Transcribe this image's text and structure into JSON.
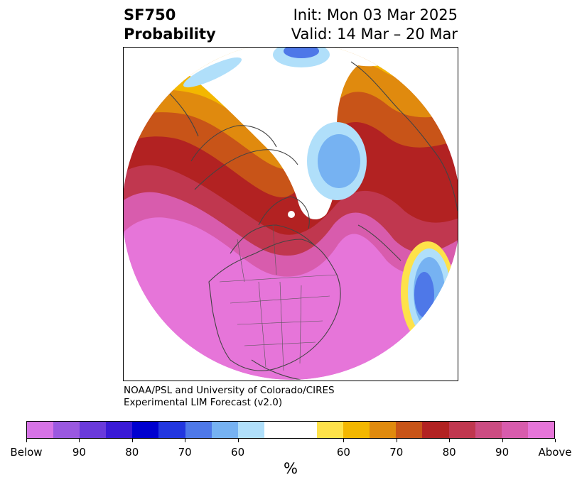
{
  "title": {
    "variable": "SF750",
    "subtitle": "Probability",
    "init": "Init: Mon 03 Mar 2025",
    "valid": "Valid: 14 Mar – 20 Mar"
  },
  "credit": {
    "line1": "NOAA/PSL and University of Colorado/CIRES",
    "line2": "Experimental LIM Forecast (v2.0)"
  },
  "map": {
    "projection": "north-polar-stereographic",
    "region": "North America / Arctic / North Atlantic",
    "features": [
      "coastlines",
      "country borders",
      "state and province borders"
    ],
    "highlights": [
      {
        "where": "Arctic Ocean",
        "category": "below"
      },
      {
        "where": "Central North Atlantic",
        "category": "below"
      },
      {
        "where": "Contiguous United States",
        "category": "above"
      },
      {
        "where": "Northeast Pacific",
        "category": "above"
      }
    ]
  },
  "colorbar": {
    "unit": "%",
    "colors_below": [
      "#d673e6",
      "#9a58e0",
      "#6a3adb",
      "#3a1ad6",
      "#0000cf",
      "#2236df",
      "#4e78e8",
      "#76b2f2",
      "#b0dffa"
    ],
    "color_neutral": "#ffffff",
    "colors_above": [
      "#fee24a",
      "#f3b700",
      "#e08a0e",
      "#c85418",
      "#b22222",
      "#c0374f",
      "#cc4c82",
      "#d85cad",
      "#e675d9"
    ],
    "labels": [
      "Below",
      "90",
      "80",
      "70",
      "60",
      "60",
      "70",
      "80",
      "90",
      "Above"
    ]
  }
}
